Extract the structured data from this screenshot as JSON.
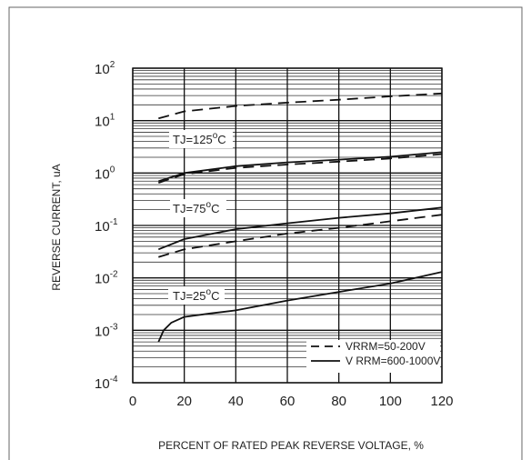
{
  "chart_data": {
    "type": "line",
    "title": "",
    "xlabel": "PERCENT OF RATED PEAK REVERSE VOLTAGE, %",
    "ylabel": "REVERSE CURRENT, uA",
    "xlim": [
      0,
      120
    ],
    "ylim": [
      0.0001,
      100
    ],
    "y_scale": "log",
    "x_ticks": [
      "0",
      "20",
      "40",
      "60",
      "80",
      "100",
      "120"
    ],
    "y_ticks": [
      {
        "base": "10",
        "exp": "2"
      },
      {
        "base": "10",
        "exp": "1"
      },
      {
        "base": "10",
        "exp": "0"
      },
      {
        "base": "10",
        "exp": "-1"
      },
      {
        "base": "10",
        "exp": "-2"
      },
      {
        "base": "10",
        "exp": "-3"
      },
      {
        "base": "10",
        "exp": "-4"
      }
    ],
    "grid": true,
    "annotations": [
      {
        "text": "TJ=125",
        "sup": "o",
        "suffix": "C"
      },
      {
        "text": "TJ=75",
        "sup": "o",
        "suffix": "C"
      },
      {
        "text": "TJ=25",
        "sup": "o",
        "suffix": "C"
      }
    ],
    "legend": {
      "position": "bottom-right",
      "entries": [
        {
          "style": "dashed",
          "text": "VRRM=50-200V"
        },
        {
          "style": "solid",
          "text": "V  RRM=600-1000V"
        }
      ]
    },
    "series": [
      {
        "style": "dashed",
        "x": [
          10,
          20,
          40,
          60,
          80,
          100,
          120
        ],
        "y": [
          11,
          15,
          19,
          22,
          25,
          29,
          33
        ]
      },
      {
        "style": "solid",
        "x": [
          10,
          20,
          40,
          60,
          80,
          100,
          120
        ],
        "y": [
          0.7,
          1.0,
          1.35,
          1.6,
          1.8,
          2.05,
          2.5
        ]
      },
      {
        "style": "dashed",
        "x": [
          10,
          20,
          40,
          60,
          80,
          100,
          120
        ],
        "y": [
          0.65,
          0.95,
          1.25,
          1.45,
          1.65,
          1.9,
          2.3
        ]
      },
      {
        "style": "solid",
        "x": [
          10,
          20,
          40,
          60,
          80,
          100,
          120
        ],
        "y": [
          0.035,
          0.055,
          0.085,
          0.11,
          0.14,
          0.17,
          0.22
        ]
      },
      {
        "style": "dashed",
        "x": [
          10,
          20,
          40,
          60,
          80,
          100,
          120
        ],
        "y": [
          0.025,
          0.035,
          0.05,
          0.07,
          0.09,
          0.12,
          0.16
        ]
      },
      {
        "style": "solid",
        "x": [
          10,
          12,
          15,
          20,
          30,
          40,
          60,
          80,
          100,
          120
        ],
        "y": [
          0.0006,
          0.001,
          0.0014,
          0.0018,
          0.0021,
          0.0024,
          0.0037,
          0.0054,
          0.0078,
          0.013
        ]
      }
    ]
  }
}
